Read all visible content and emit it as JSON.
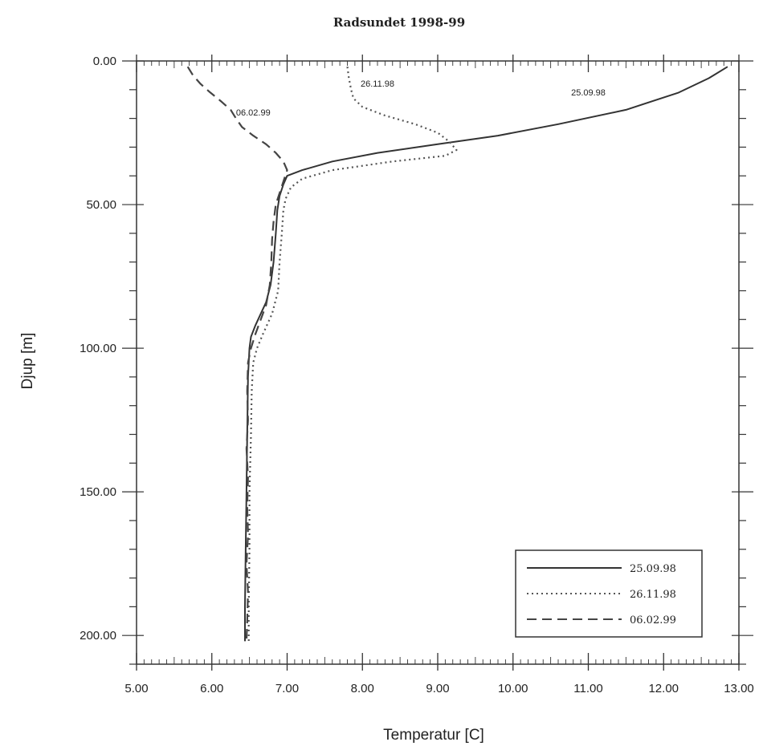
{
  "chart_data": {
    "type": "line",
    "title": "Radsundet 1998-99",
    "xlabel": "Temperatur [C]",
    "ylabel": "Djup [m]",
    "xlim": [
      5.0,
      13.0
    ],
    "ylim": [
      0,
      210
    ],
    "y_inverted": true,
    "x_ticks": [
      "5.00",
      "6.00",
      "7.00",
      "8.00",
      "9.00",
      "10.00",
      "11.00",
      "12.00",
      "13.00"
    ],
    "y_ticks": [
      "0.00",
      "50.00",
      "100.00",
      "150.00",
      "200.00"
    ],
    "grid": false,
    "legend_position": "bottom-right",
    "series": [
      {
        "name": "25.09.98",
        "style": "solid",
        "color": "#333333",
        "points": [
          [
            12.85,
            2
          ],
          [
            12.6,
            6
          ],
          [
            12.2,
            11
          ],
          [
            11.5,
            17
          ],
          [
            10.6,
            22
          ],
          [
            9.8,
            26
          ],
          [
            9.0,
            29
          ],
          [
            8.2,
            32
          ],
          [
            7.6,
            35
          ],
          [
            7.2,
            38
          ],
          [
            7.0,
            40
          ],
          [
            6.95,
            43
          ],
          [
            6.9,
            47
          ],
          [
            6.87,
            52
          ],
          [
            6.85,
            60
          ],
          [
            6.82,
            70
          ],
          [
            6.78,
            78
          ],
          [
            6.72,
            84
          ],
          [
            6.65,
            88
          ],
          [
            6.58,
            92
          ],
          [
            6.52,
            96
          ],
          [
            6.5,
            100
          ],
          [
            6.49,
            105
          ],
          [
            6.48,
            110
          ],
          [
            6.47,
            130
          ],
          [
            6.46,
            150
          ],
          [
            6.45,
            170
          ],
          [
            6.44,
            190
          ],
          [
            6.44,
            202
          ]
        ]
      },
      {
        "name": "26.11.98",
        "style": "dotted",
        "color": "#555555",
        "points": [
          [
            7.8,
            2
          ],
          [
            7.82,
            6
          ],
          [
            7.85,
            10
          ],
          [
            7.88,
            13
          ],
          [
            8.0,
            16
          ],
          [
            8.3,
            19
          ],
          [
            8.7,
            22
          ],
          [
            9.0,
            25
          ],
          [
            9.15,
            28
          ],
          [
            9.25,
            31
          ],
          [
            9.1,
            33
          ],
          [
            8.4,
            35
          ],
          [
            7.6,
            38
          ],
          [
            7.2,
            41
          ],
          [
            7.05,
            44
          ],
          [
            6.98,
            48
          ],
          [
            6.95,
            52
          ],
          [
            6.93,
            60
          ],
          [
            6.9,
            70
          ],
          [
            6.88,
            80
          ],
          [
            6.8,
            88
          ],
          [
            6.68,
            95
          ],
          [
            6.6,
            100
          ],
          [
            6.55,
            105
          ],
          [
            6.53,
            115
          ],
          [
            6.52,
            130
          ],
          [
            6.5,
            150
          ],
          [
            6.5,
            170
          ],
          [
            6.49,
            190
          ],
          [
            6.49,
            202
          ]
        ]
      },
      {
        "name": "06.02.99",
        "style": "dashed",
        "color": "#444444",
        "points": [
          [
            5.68,
            2
          ],
          [
            5.75,
            5
          ],
          [
            5.85,
            8
          ],
          [
            5.98,
            11
          ],
          [
            6.12,
            14
          ],
          [
            6.25,
            17
          ],
          [
            6.32,
            20
          ],
          [
            6.4,
            23
          ],
          [
            6.55,
            26
          ],
          [
            6.72,
            29
          ],
          [
            6.85,
            32
          ],
          [
            6.95,
            35
          ],
          [
            7.0,
            38
          ],
          [
            6.95,
            42
          ],
          [
            6.9,
            46
          ],
          [
            6.85,
            50
          ],
          [
            6.82,
            56
          ],
          [
            6.8,
            62
          ],
          [
            6.79,
            70
          ],
          [
            6.77,
            78
          ],
          [
            6.72,
            85
          ],
          [
            6.65,
            90
          ],
          [
            6.58,
            95
          ],
          [
            6.52,
            100
          ],
          [
            6.48,
            105
          ],
          [
            6.47,
            115
          ],
          [
            6.48,
            125
          ],
          [
            6.46,
            135
          ],
          [
            6.48,
            145
          ],
          [
            6.47,
            155
          ],
          [
            6.48,
            165
          ],
          [
            6.46,
            175
          ],
          [
            6.48,
            185
          ],
          [
            6.47,
            195
          ],
          [
            6.46,
            202
          ]
        ]
      }
    ],
    "annotations": [
      {
        "text": "25.09.98",
        "x": 11.0,
        "y": 12
      },
      {
        "text": "26.11.98",
        "x": 8.2,
        "y": 9
      },
      {
        "text": "06.02.99",
        "x": 6.55,
        "y": 19
      }
    ]
  }
}
